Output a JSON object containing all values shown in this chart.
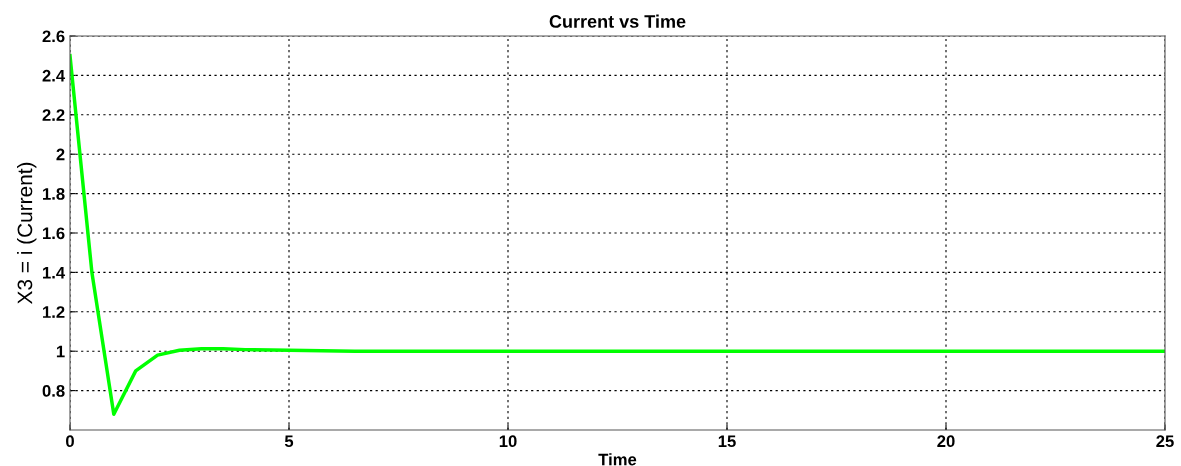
{
  "chart_data": {
    "type": "line",
    "title": "Current vs Time",
    "xlabel": "Time",
    "ylabel": "X3 = i (Current)",
    "x": [
      0,
      0.5,
      1,
      1.5,
      2,
      2.5,
      3,
      3.5,
      4,
      5,
      6.5,
      25
    ],
    "series": [
      {
        "color": "#00ff00",
        "values": [
          2.5,
          1.4,
          0.68,
          0.9,
          0.98,
          1.005,
          1.012,
          1.012,
          1.008,
          1.005,
          1.0,
          1.0
        ]
      }
    ],
    "xlim": [
      0,
      25
    ],
    "xticks": [
      0,
      5,
      10,
      15,
      20,
      25
    ],
    "ylim": [
      0.6,
      2.6
    ],
    "yticks": [
      0.8,
      1,
      1.2,
      1.4,
      1.6,
      1.8,
      2,
      2.2,
      2.4,
      2.6
    ],
    "grid": true,
    "line_style": "solid",
    "marker": "none",
    "legend": false
  }
}
